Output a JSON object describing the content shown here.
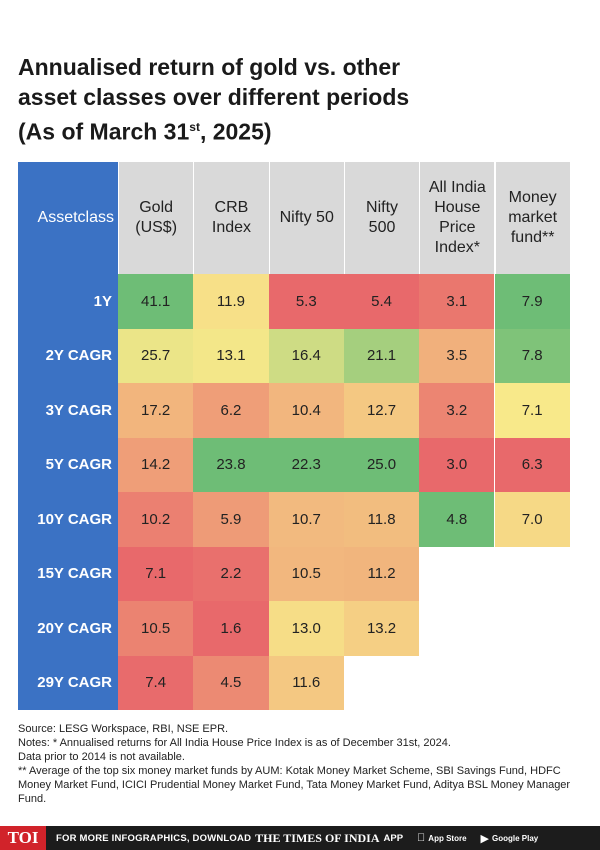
{
  "title": {
    "line1": "Annualised return of gold vs. other",
    "line2": "asset classes over different periods",
    "line3_pre": "(As of March 31",
    "line3_sup": "st",
    "line3_post": ", 2025)"
  },
  "chart_data": {
    "type": "table",
    "corner_header": [
      "Asset",
      "class"
    ],
    "columns": [
      {
        "label": [
          "Gold",
          "(US$)"
        ]
      },
      {
        "label": [
          "CRB",
          "Index"
        ]
      },
      {
        "label": [
          "Nifty 50"
        ]
      },
      {
        "label": [
          "Nifty",
          "500"
        ]
      },
      {
        "label": [
          "All India",
          "House",
          "Price",
          "Index*"
        ]
      },
      {
        "label": [
          "Money",
          "market",
          "fund**"
        ]
      }
    ],
    "rows": [
      {
        "label": "1Y",
        "values": [
          "41.1",
          "11.9",
          "5.3",
          "5.4",
          "3.1",
          "7.9"
        ]
      },
      {
        "label": "2Y CAGR",
        "values": [
          "25.7",
          "13.1",
          "16.4",
          "21.1",
          "3.5",
          "7.8"
        ]
      },
      {
        "label": "3Y CAGR",
        "values": [
          "17.2",
          "6.2",
          "10.4",
          "12.7",
          "3.2",
          "7.1"
        ]
      },
      {
        "label": "5Y CAGR",
        "values": [
          "14.2",
          "23.8",
          "22.3",
          "25.0",
          "3.0",
          "6.3"
        ]
      },
      {
        "label": "10Y CAGR",
        "values": [
          "10.2",
          "5.9",
          "10.7",
          "11.8",
          "4.8",
          "7.0"
        ]
      },
      {
        "label": "15Y CAGR",
        "values": [
          "7.1",
          "2.2",
          "10.5",
          "11.2",
          null,
          null
        ]
      },
      {
        "label": "20Y CAGR",
        "values": [
          "10.5",
          "1.6",
          "13.0",
          "13.2",
          null,
          null
        ]
      },
      {
        "label": "29Y CAGR",
        "values": [
          "7.4",
          "4.5",
          "11.6",
          null,
          null,
          null
        ]
      }
    ],
    "color_scale": {
      "low": "#e8696b",
      "mid": "#f8e98a",
      "high": "#6ebd76"
    }
  },
  "notes": {
    "source": "Source: LESG Workspace, RBI, NSE EPR.",
    "note1": "Notes: * Annualised returns for All India House Price Index is as of December 31st, 2024.",
    "note1b": "Data prior to 2014 is not available.",
    "note2": "** Average of the top six money market funds by AUM: Kotak Money Market Scheme, SBI Savings Fund, HDFC Money Market Fund, ICICI Prudential Money Market Fund, Tata Money Market Fund, Aditya BSL Money Manager Fund."
  },
  "footer": {
    "logo": "TOI",
    "text": "FOR MORE INFOGRAPHICS, DOWNLOAD",
    "brand": "THE TIMES OF INDIA",
    "app": "APP",
    "app_store": "App Store",
    "google_play": "Google Play",
    "colors": {
      "bar": "#1c1c1c",
      "logo": "#d1232a"
    }
  }
}
